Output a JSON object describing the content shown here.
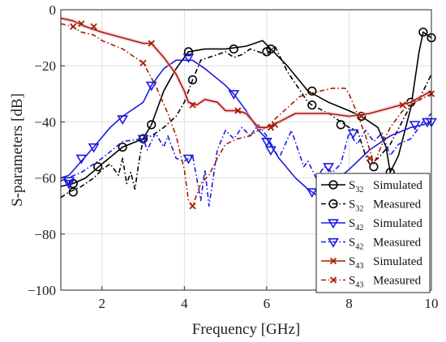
{
  "chart_data": {
    "type": "line",
    "title": "",
    "xlabel": "Frequency [GHz]",
    "ylabel": "S-parameters [dB]",
    "xlim": [
      1,
      10
    ],
    "ylim": [
      -100,
      0
    ],
    "xticks": [
      "2",
      "4",
      "6",
      "8",
      "10"
    ],
    "xtick_values": [
      2,
      4,
      6,
      8,
      10
    ],
    "yticks": [
      "0",
      "−20",
      "−40",
      "−60",
      "−80",
      "−100"
    ],
    "ytick_values": [
      0,
      -20,
      -40,
      -60,
      -80,
      -100
    ],
    "grid": true,
    "legend_position": "bottom-right",
    "series": [
      {
        "name": "Simulated",
        "sub": "32",
        "color": "#000000",
        "dash": "solid",
        "marker": "circle",
        "x": [
          1,
          1.3,
          1.6,
          2.0,
          2.5,
          3.0,
          3.2,
          3.5,
          3.8,
          4.0,
          4.1,
          4.5,
          5.0,
          5.5,
          5.9,
          6.1,
          6.5,
          7.0,
          7.5,
          8.0,
          8.3,
          8.7,
          8.9,
          9.0,
          9.2,
          9.5,
          9.7,
          9.8,
          10.0
        ],
        "y": [
          -63,
          -62,
          -60,
          -55,
          -49,
          -46,
          -41,
          -29,
          -21,
          -17,
          -15,
          -14,
          -14,
          -13,
          -11,
          -14,
          -20,
          -29,
          -33,
          -36,
          -38,
          -42,
          -49,
          -58,
          -52,
          -35,
          -15,
          -8,
          -10
        ],
        "marker_x": [
          1.3,
          1.9,
          2.5,
          3.0,
          3.2,
          4.1,
          5.2,
          6.1,
          7.1,
          8.3,
          9.0,
          9.8,
          10.0
        ],
        "marker_y": [
          -62,
          -56,
          -49,
          -46,
          -41,
          -15,
          -14,
          -14,
          -29,
          -38,
          -58,
          -8,
          -10
        ]
      },
      {
        "name": "Measured",
        "sub": "32",
        "color": "#000000",
        "dash": "dashdot",
        "marker": "circle",
        "x": [
          1,
          1.2,
          1.5,
          1.8,
          2.0,
          2.2,
          2.4,
          2.5,
          2.6,
          2.7,
          2.8,
          2.9,
          3.0,
          3.2,
          3.5,
          3.8,
          4.0,
          4.2,
          4.4,
          4.6,
          4.8,
          5.0,
          5.2,
          5.4,
          5.6,
          5.8,
          6.0,
          6.2,
          6.5,
          7.0,
          7.1,
          7.5,
          7.8,
          8.0,
          8.2,
          8.4,
          8.5,
          8.7,
          9.0,
          9.5,
          9.7,
          10.0
        ],
        "y": [
          -67,
          -65,
          -63,
          -60,
          -57,
          -55,
          -59,
          -53,
          -62,
          -58,
          -64,
          -54,
          -46,
          -45,
          -42,
          -38,
          -33,
          -25,
          -18,
          -17,
          -16,
          -15,
          -17,
          -16,
          -14,
          -15,
          -16,
          -13,
          -22,
          -33,
          -34,
          -37,
          -40,
          -42,
          -43,
          -52,
          -55,
          -53,
          -48,
          -34,
          -32,
          -23
        ],
        "marker_x": [
          1.3,
          4.2,
          6.0,
          7.1,
          7.8,
          8.6,
          9.5
        ],
        "marker_y": [
          -65,
          -25,
          -15,
          -34,
          -41,
          -56,
          -33
        ]
      },
      {
        "name": "Simulated",
        "sub": "42",
        "color": "#1a1ae6",
        "dash": "solid",
        "marker": "triangle-down",
        "x": [
          1,
          1.2,
          1.5,
          1.8,
          2.2,
          2.5,
          3.0,
          3.2,
          3.5,
          3.8,
          4.0,
          4.2,
          4.5,
          5.0,
          5.2,
          5.5,
          5.8,
          6.0,
          6.3,
          6.7,
          7.0,
          7.2,
          7.5,
          8.0,
          8.5,
          9.0,
          9.5,
          9.8,
          10.0
        ],
        "y": [
          -60,
          -59,
          -54,
          -49,
          -42,
          -38,
          -33,
          -27,
          -21,
          -18,
          -18,
          -18,
          -21,
          -27,
          -30,
          -36,
          -43,
          -46,
          -53,
          -60,
          -64,
          -66,
          -63,
          -57,
          -50,
          -45,
          -42,
          -41,
          -40
        ],
        "marker_x": [
          1.2,
          1.5,
          1.8,
          2.5,
          3.2,
          4.1,
          5.2,
          6.0,
          7.1,
          9.6,
          10.0
        ],
        "marker_y": [
          -61,
          -53,
          -49,
          -39,
          -27,
          -17,
          -30,
          -47,
          -65,
          -41,
          -40
        ]
      },
      {
        "name": "Measured",
        "sub": "42",
        "color": "#1a1ae6",
        "dash": "dashdot",
        "marker": "triangle-down",
        "x": [
          1,
          1.5,
          2.0,
          2.5,
          3.0,
          3.1,
          3.3,
          3.5,
          3.6,
          3.8,
          4.0,
          4.2,
          4.4,
          4.5,
          4.6,
          4.8,
          5.0,
          5.2,
          5.4,
          5.6,
          5.8,
          6.0,
          6.3,
          6.6,
          6.9,
          7.0,
          7.2,
          7.4,
          7.6,
          7.8,
          8.0,
          8.2,
          8.4,
          8.6,
          8.8,
          9.0,
          9.2,
          9.5,
          9.8,
          10.0
        ],
        "y": [
          -61,
          -58,
          -53,
          -47,
          -46,
          -50,
          -44,
          -49,
          -45,
          -53,
          -54,
          -52,
          -68,
          -57,
          -70,
          -50,
          -43,
          -46,
          -42,
          -45,
          -41,
          -45,
          -53,
          -43,
          -56,
          -54,
          -60,
          -56,
          -58,
          -55,
          -44,
          -48,
          -43,
          -47,
          -44,
          -52,
          -48,
          -46,
          -40,
          -37
        ],
        "marker_x": [
          1.2,
          3.0,
          4.1,
          6.1,
          7.5,
          8.1,
          9.9
        ],
        "marker_y": [
          -62,
          -46,
          -53,
          -50,
          -56,
          -44,
          -40
        ]
      },
      {
        "name": "Simulated",
        "sub": "43",
        "color": "#a61c00",
        "dash": "solid",
        "marker": "cross",
        "x": [
          1,
          1.3,
          1.6,
          2.0,
          2.5,
          3.0,
          3.2,
          3.5,
          3.8,
          4.0,
          4.1,
          4.3,
          4.5,
          4.8,
          5.0,
          5.3,
          5.5,
          5.8,
          6.0,
          6.3,
          6.7,
          7.0,
          7.5,
          8.0,
          8.5,
          9.0,
          9.5,
          10.0
        ],
        "y": [
          -3,
          -4,
          -6,
          -8,
          -10,
          -12,
          -12,
          -17,
          -23,
          -29,
          -33,
          -34,
          -32,
          -33,
          -36,
          -36,
          -37,
          -42,
          -42,
          -40,
          -37,
          -37,
          -37,
          -38,
          -37,
          -35,
          -33,
          -29
        ],
        "marker_x": [
          3.2,
          4.2,
          5.3,
          6.2,
          8.3,
          9.3,
          10.0
        ],
        "marker_y": [
          -12,
          -34,
          -36,
          -41,
          -38,
          -34,
          -30
        ]
      },
      {
        "name": "Measured",
        "sub": "43",
        "color": "#a61c00",
        "dash": "dashdot",
        "marker": "cross",
        "x": [
          1,
          1.3,
          1.5,
          1.8,
          2.0,
          2.5,
          2.8,
          3.0,
          3.3,
          3.6,
          3.8,
          4.0,
          4.1,
          4.2,
          4.4,
          4.6,
          4.8,
          5.0,
          5.3,
          5.6,
          5.8,
          6.0,
          6.2,
          6.5,
          6.8,
          7.0,
          7.3,
          7.6,
          7.9,
          8.0,
          8.2,
          8.4,
          8.6,
          8.8,
          9.0,
          9.3,
          9.6,
          10.0
        ],
        "y": [
          -5,
          -6,
          -8,
          -9,
          -11,
          -14,
          -17,
          -19,
          -27,
          -37,
          -45,
          -57,
          -68,
          -70,
          -62,
          -59,
          -53,
          -48,
          -46,
          -45,
          -43,
          -42,
          -39,
          -35,
          -31,
          -30,
          -29,
          -28,
          -28,
          -30,
          -37,
          -45,
          -55,
          -48,
          -42,
          -36,
          -33,
          -30
        ],
        "marker_x": [
          1.3,
          1.5,
          1.8,
          3.0,
          4.2,
          6.1,
          8.5
        ],
        "marker_y": [
          -6,
          -5,
          -6,
          -19,
          -70,
          -42,
          -53
        ]
      }
    ]
  }
}
